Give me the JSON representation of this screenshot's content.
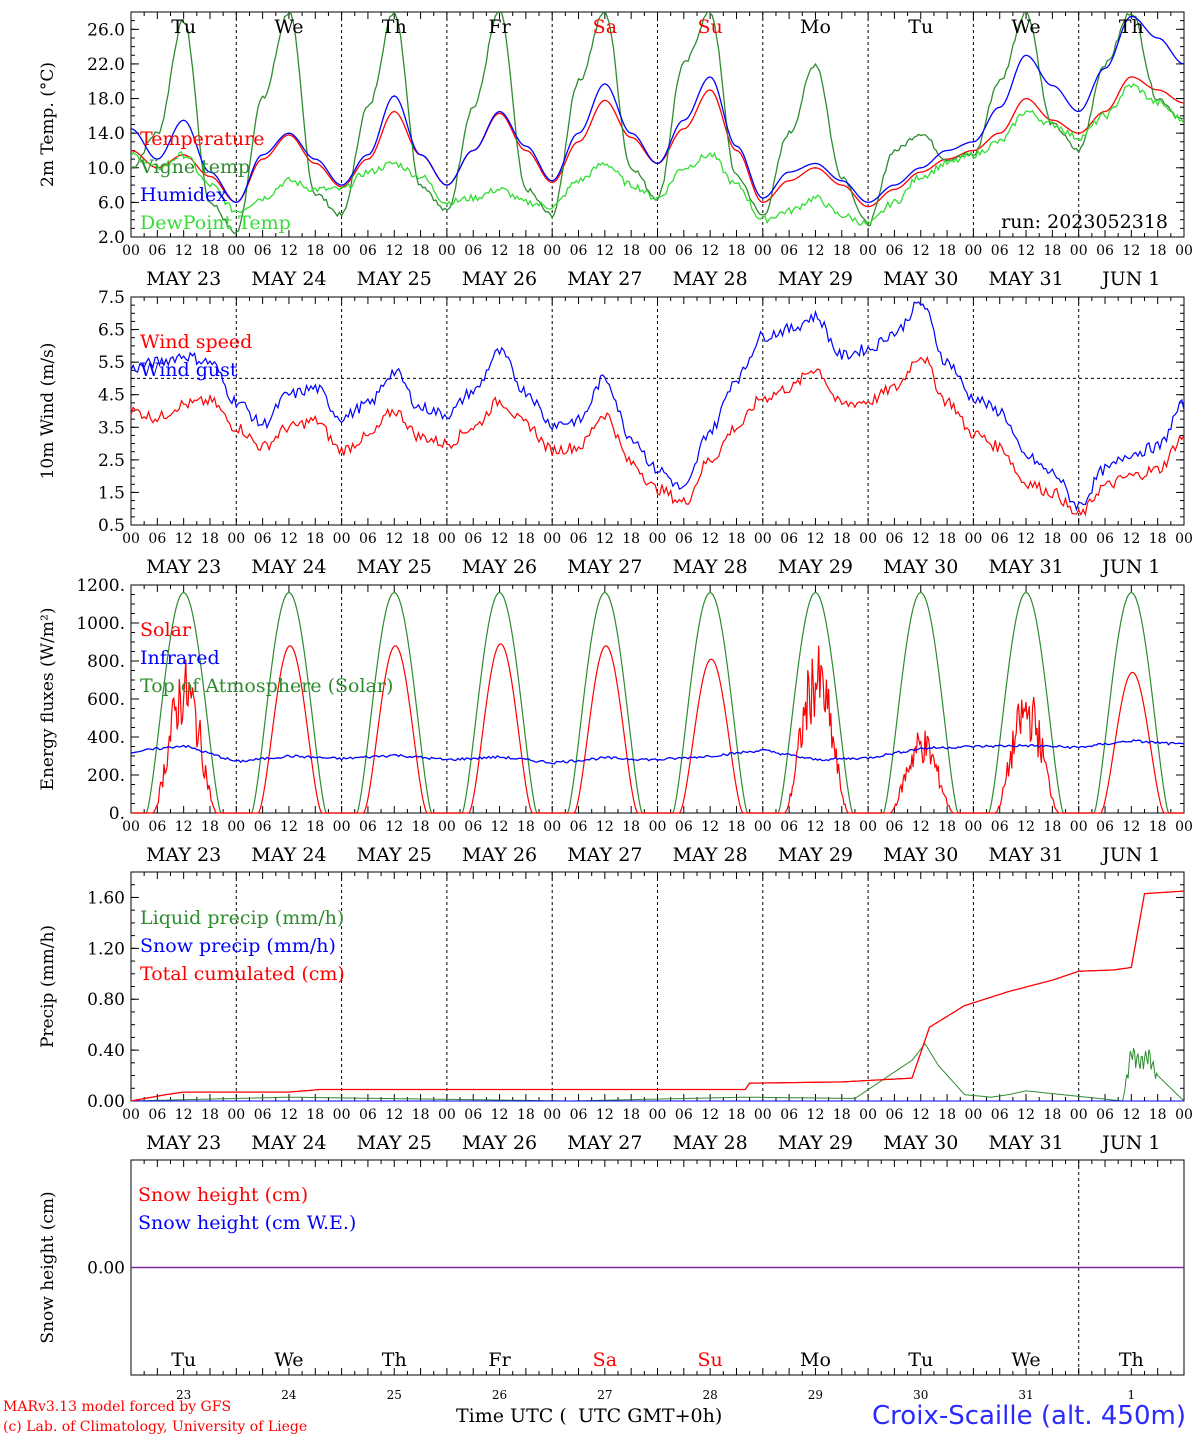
{
  "run_label": "run: 2023052318",
  "weekdays": [
    "Tu",
    "We",
    "Th",
    "Fr",
    "Sa",
    "Su",
    "Mo",
    "Tu",
    "We",
    "Th"
  ],
  "weekday_colors": [
    "#000000",
    "#000000",
    "#000000",
    "#000000",
    "#ff0000",
    "#ff0000",
    "#000000",
    "#000000",
    "#000000",
    "#000000"
  ],
  "dates": [
    "MAY 23",
    "MAY 24",
    "MAY 25",
    "MAY 26",
    "MAY 27",
    "MAY 28",
    "MAY 29",
    "MAY 30",
    "MAY 31",
    "JUN  1"
  ],
  "day_numbers": [
    "23",
    "24",
    "25",
    "26",
    "27",
    "28",
    "29",
    "30",
    "31",
    "1"
  ],
  "hour_ticks": [
    "00",
    "06",
    "12",
    "18"
  ],
  "footer": {
    "credit_line1": "MARv3.13 model forced by GFS",
    "credit_line2": "(c) Lab. of Climatology, University of Liege",
    "x_title": "Time UTC (",
    "x_title_overlap": "UTC GMT+0h)",
    "station": "Croix-Scaille (alt. 450m)"
  },
  "chart_data": [
    {
      "type": "line",
      "ylabel": "2m Temp. (°C)",
      "ylim": [
        2.0,
        28.0
      ],
      "yticks": [
        "2.0",
        "6.0",
        "10.0",
        "14.0",
        "18.0",
        "22.0",
        "26.0"
      ],
      "x_unit": "hours since May 23 00 UTC",
      "series": [
        {
          "name": "Temperature",
          "color": "#ff0000",
          "x": [
            0,
            6,
            12,
            18,
            24,
            30,
            36,
            42,
            48,
            54,
            60,
            66,
            72,
            78,
            84,
            90,
            96,
            102,
            108,
            114,
            120,
            126,
            132,
            138,
            144,
            150,
            156,
            162,
            168,
            174,
            180,
            186,
            192,
            198,
            204,
            210,
            216,
            222,
            228,
            234,
            240
          ],
          "values": [
            12.0,
            10.0,
            11.5,
            9.0,
            6.0,
            11.0,
            13.8,
            10.5,
            7.8,
            11.0,
            16.5,
            11.5,
            8.0,
            12.0,
            16.3,
            12.0,
            8.3,
            13.0,
            17.8,
            13.5,
            10.5,
            14.5,
            19.0,
            12.0,
            6.0,
            8.5,
            10.0,
            8.0,
            5.5,
            7.5,
            9.5,
            11.0,
            12.0,
            14.0,
            18.0,
            15.5,
            14.0,
            16.5,
            20.5,
            19.0,
            17.5
          ]
        },
        {
          "name": "Vigne temp",
          "color": "#2e8b2e",
          "x": [
            0,
            6,
            12,
            18,
            24,
            30,
            36,
            42,
            48,
            54,
            60,
            66,
            72,
            78,
            84,
            90,
            96,
            102,
            108,
            114,
            120,
            126,
            132,
            138,
            144,
            150,
            156,
            162,
            168,
            174,
            180,
            186,
            192,
            198,
            204,
            210,
            216,
            222,
            228,
            234,
            240
          ],
          "values": [
            10.0,
            14.0,
            27.0,
            6.0,
            2.5,
            18.0,
            28.0,
            7.0,
            4.5,
            17.0,
            28.0,
            8.0,
            5.0,
            17.0,
            28.0,
            7.5,
            4.5,
            20.0,
            28.0,
            10.0,
            6.5,
            22.0,
            28.0,
            9.0,
            4.5,
            14.0,
            22.0,
            9.0,
            3.5,
            12.0,
            14.0,
            11.0,
            11.5,
            20.0,
            28.0,
            15.0,
            12.0,
            22.0,
            28.0,
            18.0,
            15.5
          ]
        },
        {
          "name": "Humidex",
          "color": "#0000ff",
          "x": [
            0,
            6,
            12,
            18,
            24,
            30,
            36,
            42,
            48,
            54,
            60,
            66,
            72,
            78,
            84,
            90,
            96,
            102,
            108,
            114,
            120,
            126,
            132,
            138,
            144,
            150,
            156,
            162,
            168,
            174,
            180,
            186,
            192,
            198,
            204,
            210,
            216,
            222,
            228,
            234,
            240
          ],
          "values": [
            14.5,
            11.0,
            15.5,
            9.5,
            6.0,
            11.5,
            14.0,
            11.0,
            8.0,
            11.5,
            18.3,
            11.5,
            8.0,
            12.0,
            16.5,
            12.5,
            8.5,
            14.0,
            19.7,
            14.0,
            10.5,
            15.5,
            20.5,
            12.5,
            6.5,
            9.5,
            10.5,
            8.5,
            6.0,
            8.0,
            10.0,
            12.0,
            13.0,
            17.0,
            23.0,
            19.5,
            16.5,
            21.5,
            27.5,
            25.0,
            22.0
          ]
        },
        {
          "name": "DewPoint Temp",
          "color": "#33dd33",
          "x": [
            0,
            6,
            12,
            18,
            24,
            30,
            36,
            42,
            48,
            54,
            60,
            66,
            72,
            78,
            84,
            90,
            96,
            102,
            108,
            114,
            120,
            126,
            132,
            138,
            144,
            150,
            156,
            162,
            168,
            174,
            180,
            186,
            192,
            198,
            204,
            210,
            216,
            222,
            228,
            234,
            240
          ],
          "values": [
            11.5,
            10.0,
            11.5,
            8.0,
            5.0,
            6.5,
            8.5,
            7.5,
            7.5,
            9.5,
            10.5,
            9.0,
            6.0,
            6.5,
            7.5,
            6.0,
            5.5,
            8.5,
            10.5,
            8.0,
            6.5,
            10.0,
            11.5,
            8.0,
            4.0,
            5.0,
            6.5,
            4.5,
            3.5,
            6.0,
            9.0,
            10.5,
            11.5,
            13.0,
            16.5,
            15.0,
            13.5,
            16.0,
            19.5,
            17.5,
            15.5
          ]
        }
      ]
    },
    {
      "type": "line",
      "ylabel": "10m Wind (m/s)",
      "ylim": [
        0.5,
        7.5
      ],
      "yticks": [
        "0.5",
        "1.5",
        "2.5",
        "3.5",
        "4.5",
        "5.5",
        "6.5",
        "7.5"
      ],
      "reference_line": 5.0,
      "series": [
        {
          "name": "Wind speed",
          "color": "#ff0000",
          "x": [
            0,
            6,
            12,
            18,
            24,
            30,
            36,
            42,
            48,
            54,
            60,
            66,
            72,
            78,
            84,
            90,
            96,
            102,
            108,
            114,
            120,
            126,
            132,
            138,
            144,
            150,
            156,
            162,
            168,
            174,
            180,
            186,
            192,
            198,
            204,
            210,
            216,
            222,
            228,
            234,
            240
          ],
          "values": [
            4.0,
            3.8,
            4.2,
            4.3,
            3.5,
            2.9,
            3.5,
            3.7,
            2.8,
            3.2,
            4.0,
            3.2,
            3.0,
            3.5,
            4.3,
            3.6,
            2.8,
            2.9,
            3.9,
            2.4,
            1.6,
            1.2,
            2.5,
            3.5,
            4.4,
            4.7,
            5.3,
            4.2,
            4.3,
            4.7,
            5.7,
            4.3,
            3.3,
            2.9,
            1.8,
            1.5,
            0.8,
            1.7,
            2.0,
            2.2,
            3.2
          ]
        },
        {
          "name": "Wind gust",
          "color": "#0000ff",
          "x": [
            0,
            6,
            12,
            18,
            24,
            30,
            36,
            42,
            48,
            54,
            60,
            66,
            72,
            78,
            84,
            90,
            96,
            102,
            108,
            114,
            120,
            126,
            132,
            138,
            144,
            150,
            156,
            162,
            168,
            174,
            180,
            186,
            192,
            198,
            204,
            210,
            216,
            222,
            228,
            234,
            240
          ],
          "values": [
            5.3,
            5.5,
            5.7,
            5.5,
            4.3,
            3.6,
            4.5,
            4.7,
            3.8,
            4.2,
            5.2,
            4.1,
            3.9,
            4.6,
            5.8,
            4.6,
            3.6,
            3.7,
            5.0,
            3.2,
            2.2,
            1.6,
            3.4,
            5.0,
            6.3,
            6.5,
            6.9,
            5.7,
            5.9,
            6.4,
            7.3,
            5.5,
            4.4,
            4.0,
            2.6,
            2.1,
            1.1,
            2.2,
            2.7,
            2.9,
            4.2
          ]
        }
      ]
    },
    {
      "type": "line",
      "ylabel": "Energy fluxes (W/m²)",
      "ylim": [
        0,
        1200
      ],
      "yticks": [
        "0.",
        "200.",
        "400.",
        "600.",
        "800.",
        "1000.",
        "1200."
      ],
      "series": [
        {
          "name": "Solar",
          "color": "#ff0000",
          "peaks": [
            820,
            880,
            880,
            890,
            880,
            810,
            890,
            460,
            680,
            740
          ],
          "peak_x": [
            15,
            36,
            60,
            84,
            108,
            132,
            156,
            180,
            204,
            228
          ]
        },
        {
          "name": "Infrared",
          "color": "#0000ff",
          "x": [
            0,
            12,
            24,
            36,
            48,
            60,
            72,
            84,
            96,
            108,
            120,
            132,
            144,
            156,
            168,
            180,
            192,
            204,
            216,
            228,
            240
          ],
          "values": [
            320,
            355,
            270,
            300,
            285,
            305,
            280,
            295,
            265,
            290,
            280,
            300,
            330,
            280,
            290,
            340,
            350,
            355,
            345,
            380,
            360
          ]
        },
        {
          "name": "Top of Atmosphere (Solar)",
          "color": "#2e8b2e",
          "daily_peak": 1160
        }
      ]
    },
    {
      "type": "line",
      "ylabel": "Precip (mm/h)",
      "ylim": [
        0,
        1.8
      ],
      "yticks": [
        "0.00",
        "0.40",
        "0.80",
        "1.20",
        "1.60"
      ],
      "series": [
        {
          "name": "Liquid precip (mm/h)",
          "color": "#2e8b2e",
          "x": [
            0,
            36,
            100,
            140,
            165,
            178,
            181,
            184,
            190,
            196,
            200,
            204,
            226,
            228,
            230,
            232,
            234,
            240
          ],
          "values": [
            0,
            0.03,
            0,
            0.03,
            0.02,
            0.32,
            0.45,
            0.28,
            0.05,
            0.03,
            0.05,
            0.08,
            0,
            0.45,
            0.35,
            0.42,
            0.2,
            0
          ]
        },
        {
          "name": "Snow precip (mm/h)",
          "color": "#0000ff",
          "x": [
            0,
            240
          ],
          "values": [
            0,
            0
          ]
        },
        {
          "name": "Total cumulated (cm)",
          "color": "#ff0000",
          "x": [
            0,
            8,
            12,
            36,
            43,
            140,
            141,
            162,
            178,
            182,
            190,
            200,
            210,
            216,
            224,
            228,
            231,
            240
          ],
          "values": [
            0,
            0.05,
            0.07,
            0.07,
            0.09,
            0.09,
            0.14,
            0.15,
            0.18,
            0.58,
            0.75,
            0.86,
            0.95,
            1.02,
            1.03,
            1.05,
            1.63,
            1.65
          ]
        }
      ]
    },
    {
      "type": "line",
      "ylabel": "Snow height (cm)",
      "ylim": [
        -1,
        1
      ],
      "yticks": [
        "0.00"
      ],
      "series": [
        {
          "name": "Snow height (cm)",
          "color": "#ff0000",
          "x": [
            0,
            240
          ],
          "values": [
            0,
            0
          ]
        },
        {
          "name": "Snow height (cm W.E.)",
          "color": "#0000ff",
          "x": [
            0,
            240
          ],
          "values": [
            0,
            0
          ]
        }
      ]
    }
  ]
}
